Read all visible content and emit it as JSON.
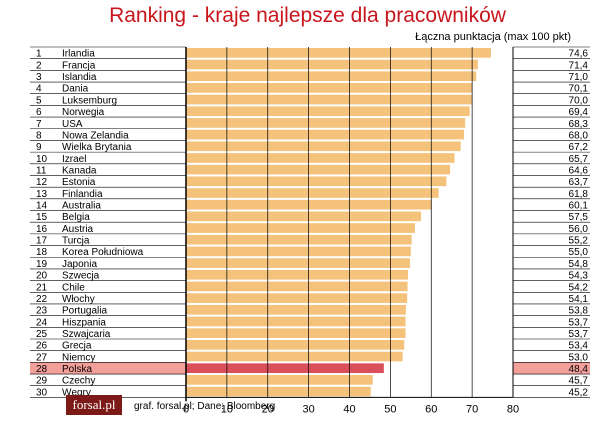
{
  "header": {
    "title": "Ranking - kraje najlepsze dla pracowników",
    "subtitle": "Łączna punktacja (max 100 pkt)"
  },
  "footer": {
    "logo": "forsal.pl",
    "source": "graf. forsal.pl;  Dane: Bloomberg"
  },
  "colors": {
    "bar": "#f4c27a",
    "highlight_bar": "#d9505a",
    "highlight_row": "#f3a09a",
    "gridline": "#000000"
  },
  "chart_data": {
    "type": "bar",
    "orientation": "horizontal",
    "title": "Ranking - kraje najlepsze dla pracowników",
    "subtitle": "Łączna punktacja (max 100 pkt)",
    "xlim": [
      0,
      80
    ],
    "xticks": [
      0,
      10,
      20,
      30,
      40,
      50,
      60,
      70,
      80
    ],
    "grid": true,
    "highlight": "Polska",
    "rows": [
      {
        "rank": "1",
        "country": "Irlandia",
        "value": 74.6,
        "label": "74,6"
      },
      {
        "rank": "2",
        "country": "Francja",
        "value": 71.4,
        "label": "71,4"
      },
      {
        "rank": "3",
        "country": "Islandia",
        "value": 71.0,
        "label": "71,0"
      },
      {
        "rank": "4",
        "country": "Dania",
        "value": 70.1,
        "label": "70,1"
      },
      {
        "rank": "5",
        "country": "Luksemburg",
        "value": 70.0,
        "label": "70,0"
      },
      {
        "rank": "6",
        "country": "Norwegia",
        "value": 69.4,
        "label": "69,4"
      },
      {
        "rank": "7",
        "country": "USA",
        "value": 68.3,
        "label": "68,3"
      },
      {
        "rank": "8",
        "country": "Nowa Zelandia",
        "value": 68.0,
        "label": "68,0"
      },
      {
        "rank": "9",
        "country": "Wielka Brytania",
        "value": 67.2,
        "label": "67,2"
      },
      {
        "rank": "10",
        "country": "Izrael",
        "value": 65.7,
        "label": "65,7"
      },
      {
        "rank": "11",
        "country": "Kanada",
        "value": 64.6,
        "label": "64,6"
      },
      {
        "rank": "12",
        "country": "Estonia",
        "value": 63.7,
        "label": "63,7"
      },
      {
        "rank": "13",
        "country": "Finlandia",
        "value": 61.8,
        "label": "61,8"
      },
      {
        "rank": "14",
        "country": "Australia",
        "value": 60.1,
        "label": "60,1"
      },
      {
        "rank": "15",
        "country": "Belgia",
        "value": 57.5,
        "label": "57,5"
      },
      {
        "rank": "16",
        "country": "Austria",
        "value": 56.0,
        "label": "56,0"
      },
      {
        "rank": "17",
        "country": "Turcja",
        "value": 55.2,
        "label": "55,2"
      },
      {
        "rank": "18",
        "country": "Korea Południowa",
        "value": 55.0,
        "label": "55,0"
      },
      {
        "rank": "19",
        "country": "Japonia",
        "value": 54.8,
        "label": "54,8"
      },
      {
        "rank": "20",
        "country": "Szwecja",
        "value": 54.3,
        "label": "54,3"
      },
      {
        "rank": "21",
        "country": "Chile",
        "value": 54.2,
        "label": "54,2"
      },
      {
        "rank": "22",
        "country": "Włochy",
        "value": 54.1,
        "label": "54,1"
      },
      {
        "rank": "23",
        "country": "Portugalia",
        "value": 53.8,
        "label": "53,8"
      },
      {
        "rank": "24",
        "country": "Hiszpania",
        "value": 53.7,
        "label": "53,7"
      },
      {
        "rank": "25",
        "country": "Szwajcaria",
        "value": 53.7,
        "label": "53,7"
      },
      {
        "rank": "26",
        "country": "Grecja",
        "value": 53.4,
        "label": "53,4"
      },
      {
        "rank": "27",
        "country": "Niemcy",
        "value": 53.0,
        "label": "53,0"
      },
      {
        "rank": "28",
        "country": "Polska",
        "value": 48.4,
        "label": "48,4"
      },
      {
        "rank": "29",
        "country": "Czechy",
        "value": 45.7,
        "label": "45,7"
      },
      {
        "rank": "30",
        "country": "Węgry",
        "value": 45.2,
        "label": "45,2"
      }
    ]
  }
}
